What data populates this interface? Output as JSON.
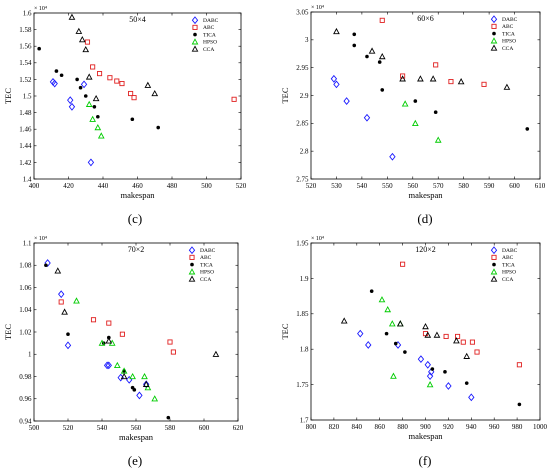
{
  "chart_data": [
    {
      "type": "scatter",
      "title": "50×4",
      "xlabel": "makespan",
      "ylabel": "TEC",
      "caption": "(c)",
      "y_multiplier": "× 10⁴",
      "xlim": [
        400,
        520
      ],
      "ylim": [
        1.4,
        1.6
      ],
      "xticks": [
        "400",
        "420",
        "440",
        "460",
        "480",
        "500",
        "520"
      ],
      "yticks": [
        "1.4",
        "1.42",
        "1.44",
        "1.46",
        "1.48",
        "1.5",
        "1.52",
        "1.54",
        "1.56",
        "1.58",
        "1.6"
      ],
      "xtick_values": [
        400,
        420,
        440,
        460,
        480,
        500,
        520
      ],
      "ytick_values": [
        1.4,
        1.42,
        1.44,
        1.46,
        1.48,
        1.5,
        1.52,
        1.54,
        1.56,
        1.58,
        1.6
      ],
      "legend_position": "top-right",
      "series": [
        {
          "name": "DABC",
          "marker": "diamond",
          "color": "#1a1aff",
          "points": [
            [
              411,
              1.517
            ],
            [
              412,
              1.515
            ],
            [
              421,
              1.495
            ],
            [
              422,
              1.487
            ],
            [
              429,
              1.514
            ],
            [
              433,
              1.42
            ]
          ]
        },
        {
          "name": "ABC",
          "marker": "square",
          "color": "#e02020",
          "points": [
            [
              431,
              1.565
            ],
            [
              434,
              1.535
            ],
            [
              438,
              1.527
            ],
            [
              444,
              1.522
            ],
            [
              448,
              1.518
            ],
            [
              451,
              1.515
            ],
            [
              456,
              1.503
            ],
            [
              458,
              1.498
            ],
            [
              516,
              1.496
            ]
          ]
        },
        {
          "name": "TICA",
          "marker": "dot",
          "color": "#000000",
          "points": [
            [
              403,
              1.557
            ],
            [
              413,
              1.53
            ],
            [
              416,
              1.525
            ],
            [
              425,
              1.52
            ],
            [
              427,
              1.51
            ],
            [
              430,
              1.5
            ],
            [
              435,
              1.487
            ],
            [
              437,
              1.475
            ],
            [
              457,
              1.472
            ],
            [
              472,
              1.462
            ]
          ]
        },
        {
          "name": "HPSO",
          "marker": "triangle",
          "color": "#00cc00",
          "points": [
            [
              432,
              1.49
            ],
            [
              434,
              1.472
            ],
            [
              437,
              1.462
            ],
            [
              439,
              1.452
            ]
          ]
        },
        {
          "name": "CCA",
          "marker": "triangle",
          "color": "#000000",
          "points": [
            [
              422,
              1.595
            ],
            [
              426,
              1.578
            ],
            [
              428,
              1.568
            ],
            [
              430,
              1.556
            ],
            [
              432,
              1.523
            ],
            [
              436,
              1.497
            ],
            [
              466,
              1.513
            ],
            [
              470,
              1.503
            ]
          ]
        }
      ]
    },
    {
      "type": "scatter",
      "title": "60×6",
      "xlabel": "makespan",
      "ylabel": "TEC",
      "caption": "(d)",
      "y_multiplier": "× 10⁴",
      "xlim": [
        520,
        610
      ],
      "ylim": [
        2.75,
        3.05
      ],
      "xticks": [
        "520",
        "530",
        "540",
        "550",
        "560",
        "570",
        "580",
        "590",
        "600",
        "610"
      ],
      "yticks": [
        "2.75",
        "2.8",
        "2.85",
        "2.9",
        "2.95",
        "3",
        "3.05"
      ],
      "xtick_values": [
        520,
        530,
        540,
        550,
        560,
        570,
        580,
        590,
        600,
        610
      ],
      "ytick_values": [
        2.75,
        2.8,
        2.85,
        2.9,
        2.95,
        3,
        3.05
      ],
      "legend_position": "top-right",
      "series": [
        {
          "name": "DABC",
          "marker": "diamond",
          "color": "#1a1aff",
          "points": [
            [
              529,
              2.93
            ],
            [
              530,
              2.92
            ],
            [
              534,
              2.89
            ],
            [
              542,
              2.86
            ],
            [
              552,
              2.79
            ]
          ]
        },
        {
          "name": "ABC",
          "marker": "square",
          "color": "#e02020",
          "points": [
            [
              548,
              3.035
            ],
            [
              556,
              2.935
            ],
            [
              569,
              2.955
            ],
            [
              575,
              2.925
            ],
            [
              588,
              2.92
            ]
          ]
        },
        {
          "name": "TICA",
          "marker": "dot",
          "color": "#000000",
          "points": [
            [
              537,
              3.01
            ],
            [
              537,
              2.99
            ],
            [
              542,
              2.97
            ],
            [
              547,
              2.96
            ],
            [
              548,
              2.91
            ],
            [
              561,
              2.89
            ],
            [
              569,
              2.87
            ],
            [
              605,
              2.84
            ]
          ]
        },
        {
          "name": "HPSO",
          "marker": "triangle",
          "color": "#00cc00",
          "points": [
            [
              557,
              2.885
            ],
            [
              561,
              2.85
            ],
            [
              570,
              2.82
            ]
          ]
        },
        {
          "name": "CCA",
          "marker": "triangle",
          "color": "#000000",
          "points": [
            [
              530,
              3.015
            ],
            [
              544,
              2.98
            ],
            [
              548,
              2.97
            ],
            [
              556,
              2.93
            ],
            [
              563,
              2.93
            ],
            [
              568,
              2.93
            ],
            [
              579,
              2.925
            ],
            [
              597,
              2.915
            ]
          ]
        }
      ]
    },
    {
      "type": "scatter",
      "title": "70×2",
      "xlabel": "makespan",
      "ylabel": "TEC",
      "caption": "(e)",
      "y_multiplier": "× 10⁴",
      "xlim": [
        500,
        620
      ],
      "ylim": [
        0.94,
        1.1
      ],
      "xticks": [
        "500",
        "520",
        "540",
        "560",
        "580",
        "600",
        "620"
      ],
      "yticks": [
        "0.94",
        "0.96",
        "0.98",
        "1",
        "1.02",
        "1.04",
        "1.06",
        "1.08",
        "1.1"
      ],
      "xtick_values": [
        500,
        520,
        540,
        560,
        580,
        600,
        620
      ],
      "ytick_values": [
        0.94,
        0.96,
        0.98,
        1,
        1.02,
        1.04,
        1.06,
        1.08,
        1.1
      ],
      "legend_position": "top-right",
      "series": [
        {
          "name": "DABC",
          "marker": "diamond",
          "color": "#1a1aff",
          "points": [
            [
              508,
              1.082
            ],
            [
              516,
              1.054
            ],
            [
              520,
              1.008
            ],
            [
              543,
              0.99
            ],
            [
              544,
              0.99
            ],
            [
              551,
              0.979
            ],
            [
              556,
              0.977
            ],
            [
              562,
              0.963
            ],
            [
              566,
              0.973
            ]
          ]
        },
        {
          "name": "ABC",
          "marker": "square",
          "color": "#e02020",
          "points": [
            [
              516,
              1.047
            ],
            [
              535,
              1.031
            ],
            [
              544,
              1.028
            ],
            [
              552,
              1.018
            ],
            [
              580,
              1.011
            ],
            [
              582,
              1.002
            ]
          ]
        },
        {
          "name": "TICA",
          "marker": "dot",
          "color": "#000000",
          "points": [
            [
              507,
              1.08
            ],
            [
              520,
              1.018
            ],
            [
              541,
              1.01
            ],
            [
              544,
              1.015
            ],
            [
              553,
              0.985
            ],
            [
              558,
              0.97
            ],
            [
              559,
              0.968
            ],
            [
              579,
              0.943
            ]
          ]
        },
        {
          "name": "HPSO",
          "marker": "triangle",
          "color": "#00cc00",
          "points": [
            [
              525,
              1.048
            ],
            [
              540,
              1.01
            ],
            [
              546,
              1.01
            ],
            [
              549,
              0.99
            ],
            [
              553,
              0.985
            ],
            [
              558,
              0.98
            ],
            [
              565,
              0.98
            ],
            [
              567,
              0.97
            ],
            [
              571,
              0.96
            ]
          ]
        },
        {
          "name": "CCA",
          "marker": "triangle",
          "color": "#000000",
          "points": [
            [
              514,
              1.075
            ],
            [
              518,
              1.038
            ],
            [
              544,
              1.012
            ],
            [
              553,
              0.98
            ],
            [
              566,
              0.973
            ],
            [
              607,
              1.0
            ]
          ]
        }
      ]
    },
    {
      "type": "scatter",
      "title": "120×2",
      "xlabel": "makespan",
      "ylabel": "TEC",
      "caption": "(f)",
      "y_multiplier": "× 10⁴",
      "xlim": [
        800,
        1000
      ],
      "ylim": [
        1.7,
        1.95
      ],
      "xticks": [
        "800",
        "820",
        "840",
        "860",
        "880",
        "900",
        "920",
        "940",
        "960",
        "980",
        "1000"
      ],
      "yticks": [
        "1.7",
        "1.75",
        "1.8",
        "1.85",
        "1.9",
        "1.95"
      ],
      "xtick_values": [
        800,
        820,
        840,
        860,
        880,
        900,
        920,
        940,
        960,
        980,
        1000
      ],
      "ytick_values": [
        1.7,
        1.75,
        1.8,
        1.85,
        1.9,
        1.95
      ],
      "legend_position": "top-right",
      "series": [
        {
          "name": "DABC",
          "marker": "diamond",
          "color": "#1a1aff",
          "points": [
            [
              843,
              1.822
            ],
            [
              850,
              1.806
            ],
            [
              876,
              1.806
            ],
            [
              896,
              1.786
            ],
            [
              902,
              1.778
            ],
            [
              904,
              1.762
            ],
            [
              905,
              1.768
            ],
            [
              920,
              1.748
            ],
            [
              940,
              1.732
            ]
          ]
        },
        {
          "name": "ABC",
          "marker": "square",
          "color": "#e02020",
          "points": [
            [
              880,
              1.92
            ],
            [
              900,
              1.822
            ],
            [
              918,
              1.818
            ],
            [
              928,
              1.818
            ],
            [
              933,
              1.81
            ],
            [
              941,
              1.81
            ],
            [
              945,
              1.796
            ],
            [
              982,
              1.778
            ]
          ]
        },
        {
          "name": "TICA",
          "marker": "dot",
          "color": "#000000",
          "points": [
            [
              853,
              1.882
            ],
            [
              866,
              1.822
            ],
            [
              874,
              1.808
            ],
            [
              882,
              1.796
            ],
            [
              906,
              1.772
            ],
            [
              917,
              1.768
            ],
            [
              936,
              1.752
            ],
            [
              982,
              1.722
            ]
          ]
        },
        {
          "name": "HPSO",
          "marker": "triangle",
          "color": "#00cc00",
          "points": [
            [
              862,
              1.87
            ],
            [
              867,
              1.856
            ],
            [
              871,
              1.836
            ],
            [
              878,
              1.836
            ],
            [
              872,
              1.762
            ],
            [
              904,
              1.75
            ]
          ]
        },
        {
          "name": "CCA",
          "marker": "triangle",
          "color": "#000000",
          "points": [
            [
              829,
              1.84
            ],
            [
              878,
              1.836
            ],
            [
              900,
              1.832
            ],
            [
              902,
              1.82
            ],
            [
              910,
              1.82
            ],
            [
              927,
              1.812
            ],
            [
              936,
              1.79
            ]
          ]
        }
      ]
    }
  ]
}
